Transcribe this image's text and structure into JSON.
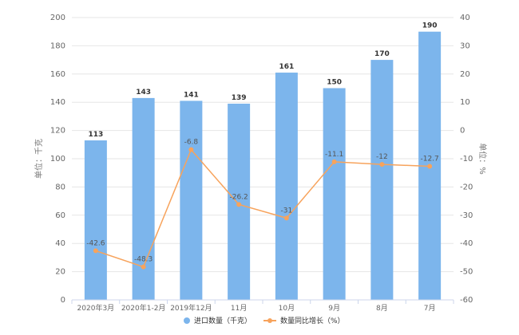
{
  "chart_data": {
    "type": "bar",
    "categories": [
      "2020年3月",
      "2020年1-2月",
      "2019年12月",
      "11月",
      "10月",
      "9月",
      "8月",
      "7月"
    ],
    "series": [
      {
        "name": "进口数量（千克）",
        "type": "bar",
        "axis": "left",
        "color": "#7cb5ec",
        "values": [
          113,
          143,
          141,
          139,
          161,
          150,
          170,
          190
        ],
        "labels": [
          "113",
          "143",
          "141",
          "139",
          "161",
          "150",
          "170",
          "190"
        ]
      },
      {
        "name": "数量同比增长（%）",
        "type": "line",
        "axis": "right",
        "color": "#f7a35c",
        "values": [
          -42.6,
          -48.3,
          -6.8,
          -26.2,
          -31,
          -11.1,
          -12,
          -12.7
        ],
        "labels": [
          "-42.6",
          "-48.3",
          "-6.8",
          "-26.2",
          "-31",
          "-11.1",
          "-12",
          "-12.7"
        ]
      }
    ],
    "y_left": {
      "label": "单位：千克",
      "ylim": [
        0,
        200
      ],
      "ticks": [
        "0",
        "20",
        "40",
        "60",
        "80",
        "100",
        "120",
        "140",
        "160",
        "180",
        "200"
      ]
    },
    "y_right": {
      "label": "单位：%",
      "ylim": [
        -60,
        40
      ],
      "ticks": [
        "-60",
        "-50",
        "-40",
        "-30",
        "-20",
        "-10",
        "0",
        "10",
        "20",
        "30",
        "40"
      ]
    },
    "grid": true,
    "legend_position": "bottom"
  }
}
